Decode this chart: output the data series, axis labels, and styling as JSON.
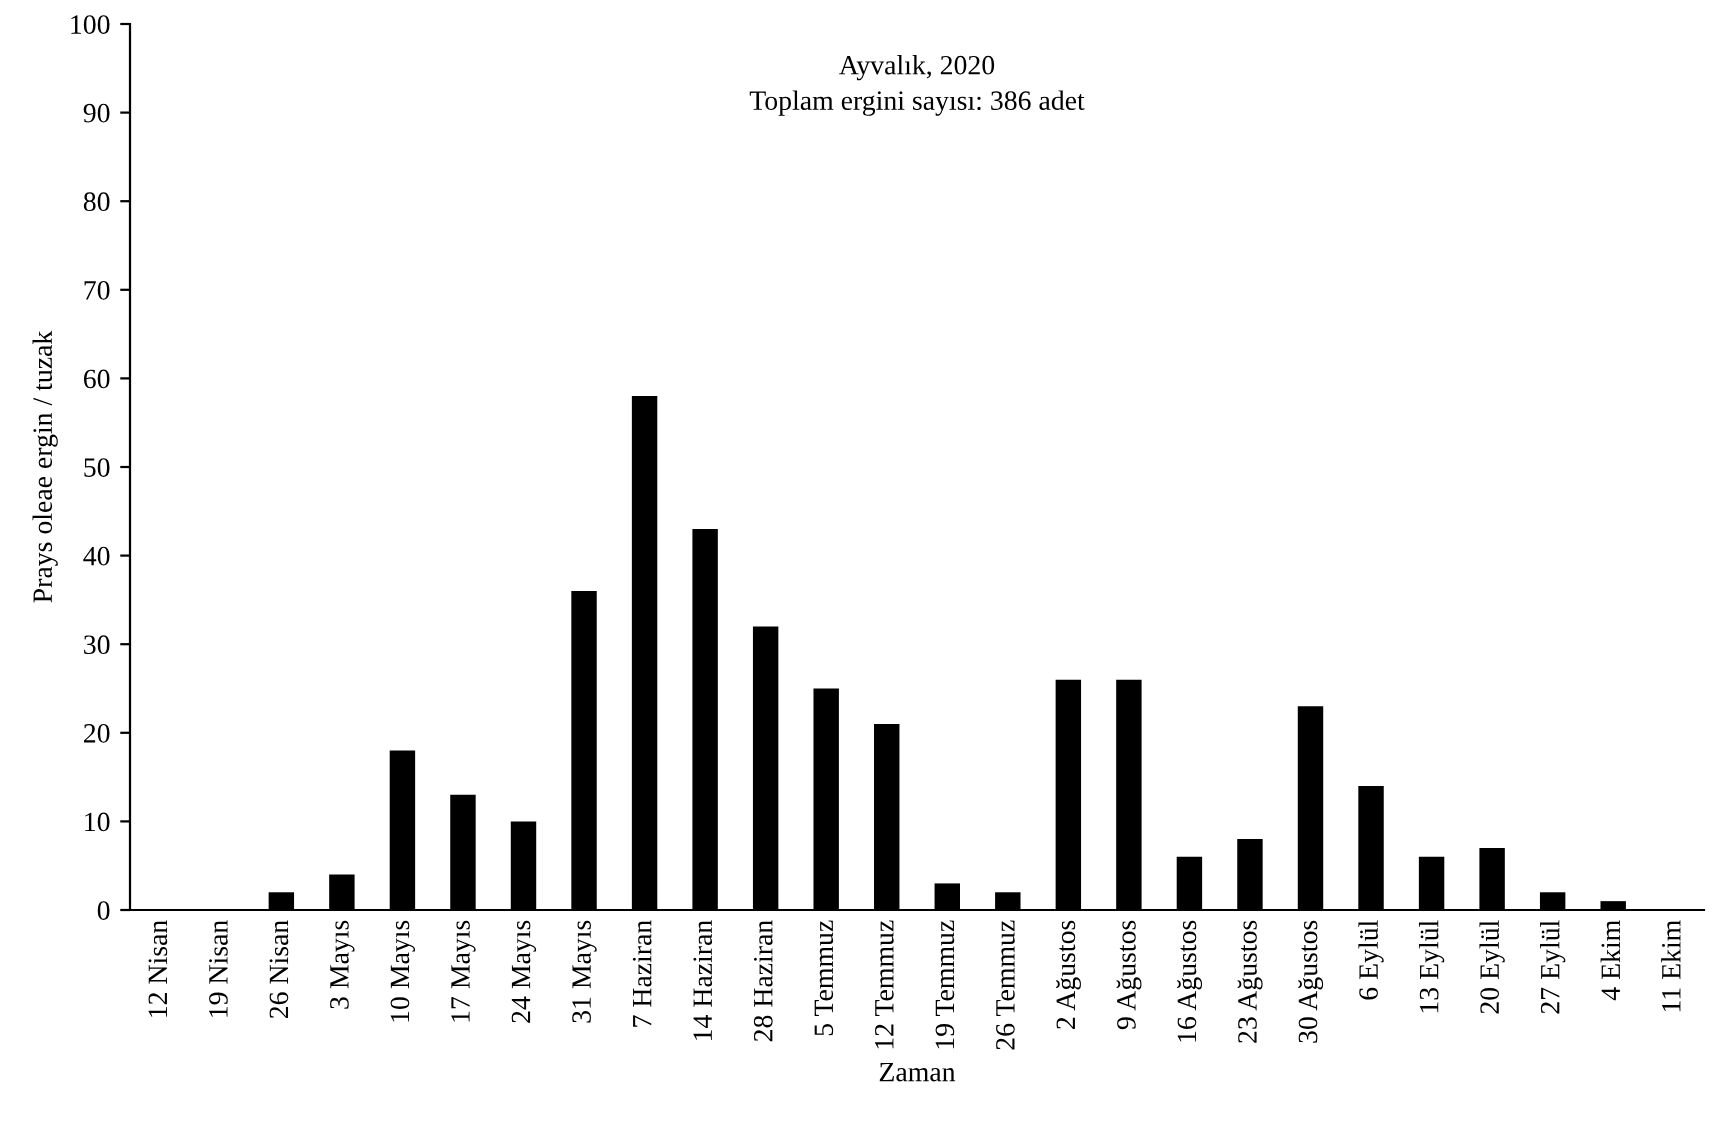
{
  "chart_data": {
    "type": "bar",
    "title": "Ayvalık, 2020",
    "subtitle": "Toplam ergini sayısı: 386 adet",
    "xlabel": "Zaman",
    "ylabel": "Prays oleae ergin / tuzak",
    "categories": [
      "12 Nisan",
      "19 Nisan",
      "26 Nisan",
      "3 Mayıs",
      "10 Mayıs",
      "17 Mayıs",
      "24 Mayıs",
      "31 Mayıs",
      "7 Haziran",
      "14 Haziran",
      "28 Haziran",
      "5 Temmuz",
      "12 Temmuz",
      "19 Temmuz",
      "26 Temmuz",
      "2 Ağustos",
      "9 Ağustos",
      "16 Ağustos",
      "23 Ağustos",
      "30 Ağustos",
      "6 Eylül",
      "13 Eylül",
      "20 Eylül",
      "27 Eylül",
      "4 Ekim",
      "11 Ekim"
    ],
    "values": [
      0,
      0,
      2,
      4,
      18,
      13,
      10,
      36,
      58,
      43,
      32,
      25,
      21,
      3,
      2,
      26,
      26,
      6,
      8,
      23,
      14,
      6,
      7,
      2,
      1,
      0
    ],
    "color": "#000000",
    "ylim": [
      0,
      100
    ],
    "yticks": [
      0,
      10,
      20,
      30,
      40,
      50,
      60,
      70,
      80,
      90,
      100
    ],
    "grid": false,
    "legend": false
  }
}
